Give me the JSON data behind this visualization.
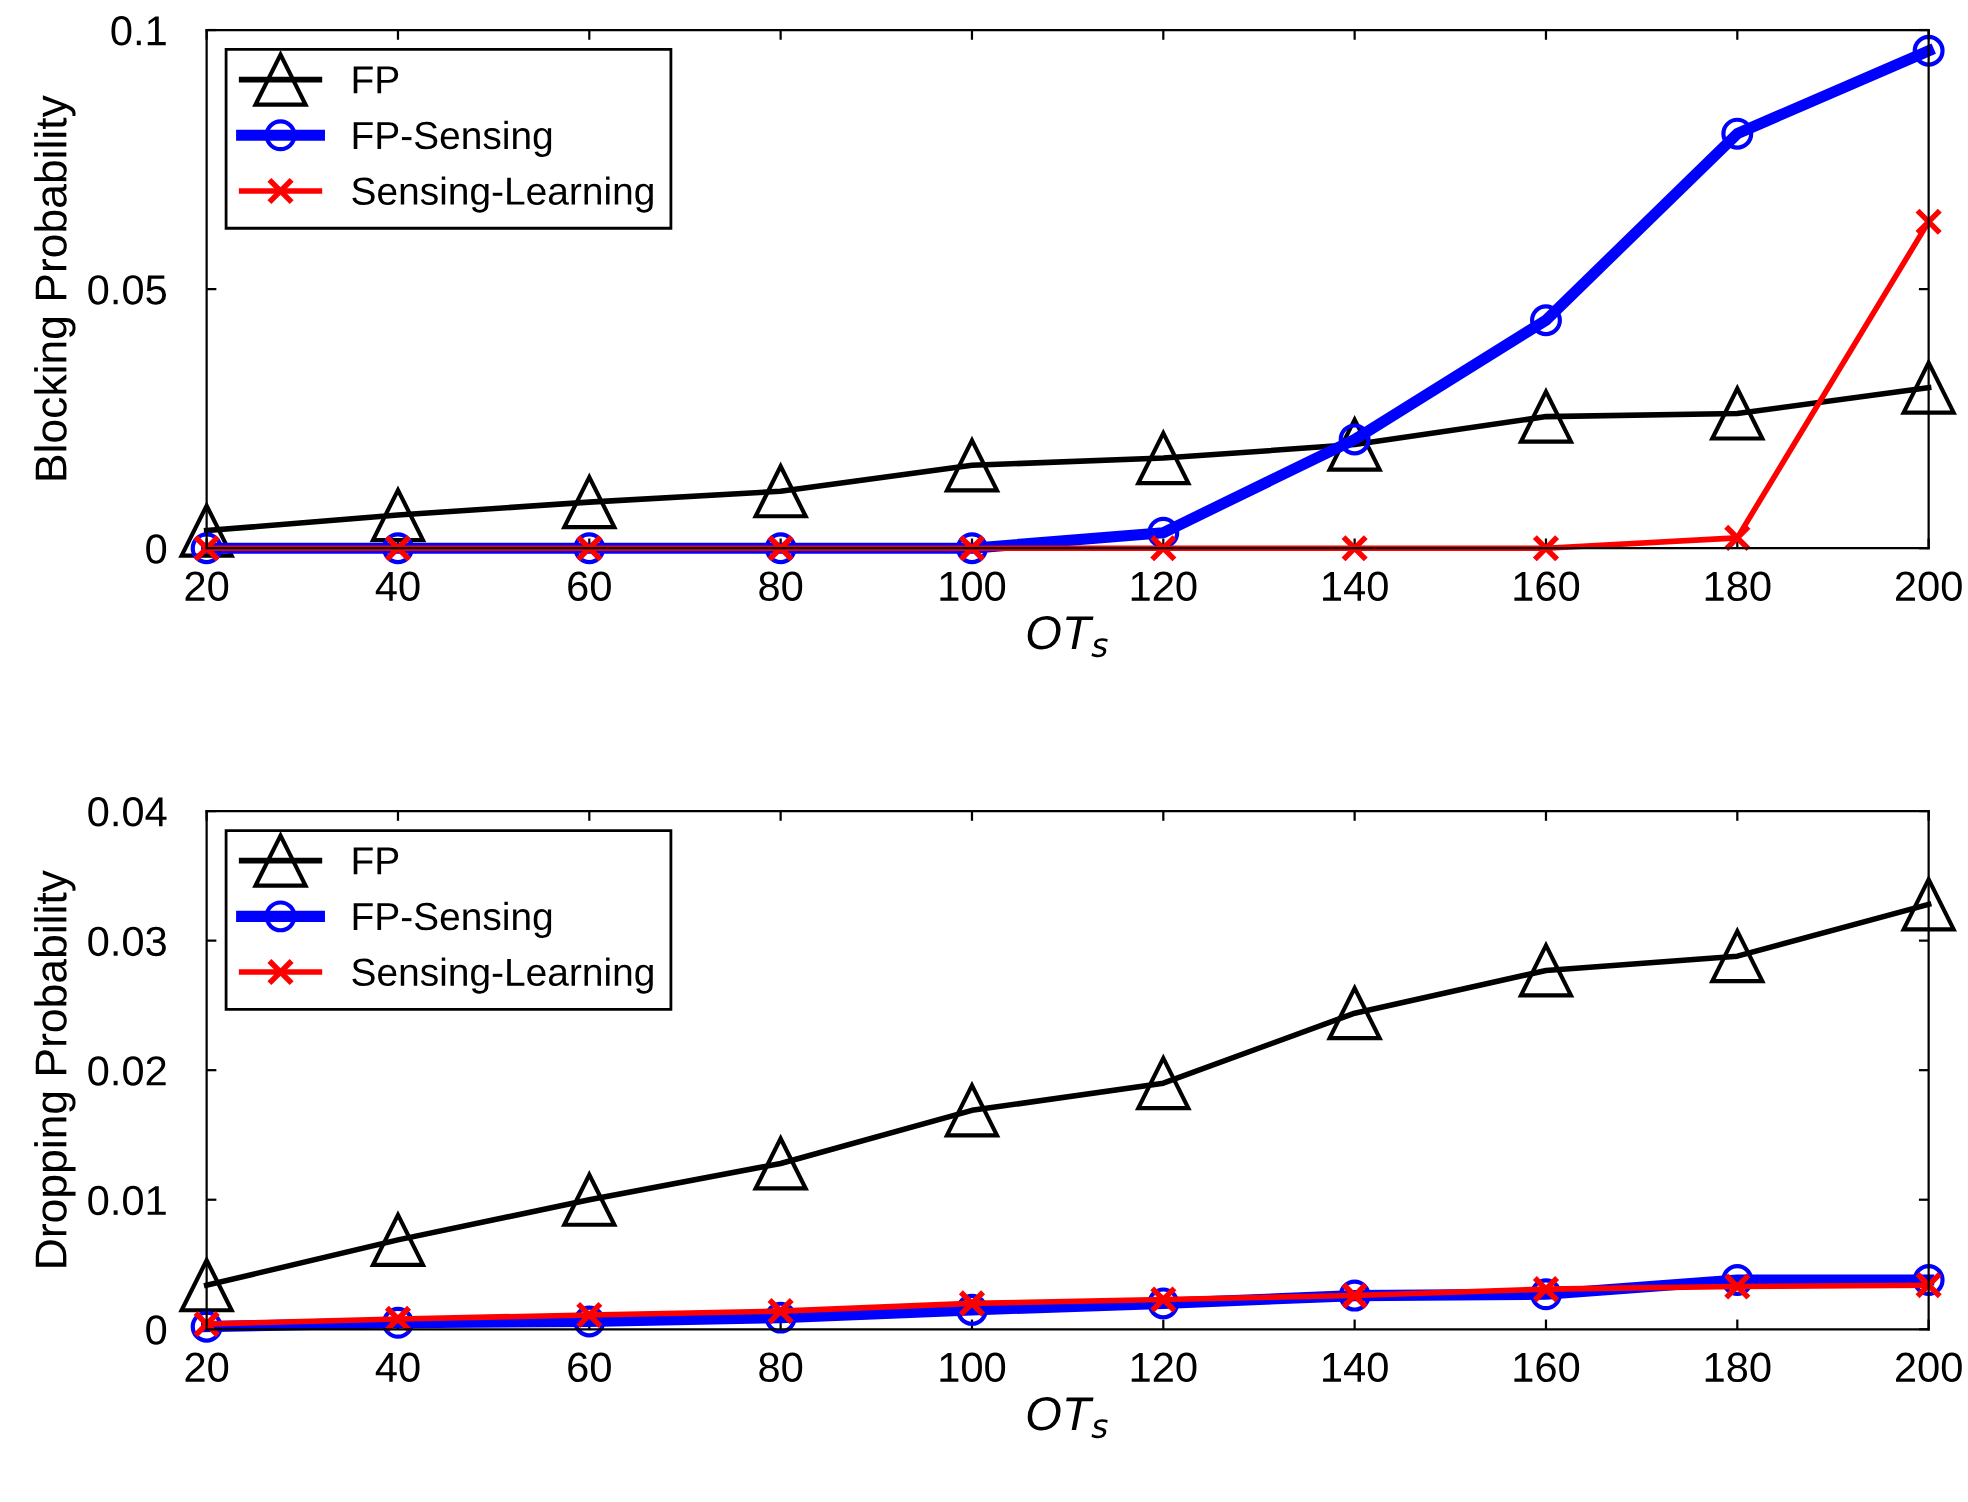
{
  "chart_data": [
    {
      "type": "line",
      "ylabel": "Blocking Probability",
      "xlabel": "OT$_{s}$",
      "x": [
        20,
        40,
        60,
        80,
        100,
        120,
        140,
        160,
        180,
        200
      ],
      "xlim": [
        20,
        200
      ],
      "xticks": [
        20,
        40,
        60,
        80,
        100,
        120,
        140,
        160,
        180,
        200
      ],
      "ylim": [
        0,
        0.1
      ],
      "yticks": [
        0,
        0.05,
        0.1
      ],
      "legend": "top left",
      "grid": false,
      "series": [
        {
          "name": "FP",
          "color": "#000000",
          "marker": "triangle",
          "values": [
            0.0034,
            0.0064,
            0.0089,
            0.011,
            0.016,
            0.0174,
            0.02,
            0.0254,
            0.026,
            0.031
          ]
        },
        {
          "name": "FP-Sensing",
          "color": "#0000ff",
          "marker": "circle",
          "values": [
            0,
            0,
            0,
            0,
            0,
            0.003,
            0.021,
            0.044,
            0.08,
            0.096
          ]
        },
        {
          "name": "Sensing-Learning",
          "color": "#ff0000",
          "marker": "cross",
          "values": [
            0,
            0,
            0,
            0,
            0,
            0,
            0,
            0,
            0.002,
            0.063
          ]
        }
      ]
    },
    {
      "type": "line",
      "ylabel": "Dropping Probability",
      "xlabel": "OT$_{s}$",
      "x": [
        20,
        40,
        60,
        80,
        100,
        120,
        140,
        160,
        180,
        200
      ],
      "xlim": [
        20,
        200
      ],
      "xticks": [
        20,
        40,
        60,
        80,
        100,
        120,
        140,
        160,
        180,
        200
      ],
      "ylim": [
        0,
        0.04
      ],
      "yticks": [
        0,
        0.01,
        0.02,
        0.03,
        0.04
      ],
      "legend": "top left",
      "grid": false,
      "series": [
        {
          "name": "FP",
          "color": "#000000",
          "marker": "triangle",
          "values": [
            0.0034,
            0.0069,
            0.01,
            0.0128,
            0.0169,
            0.019,
            0.0244,
            0.0277,
            0.0288,
            0.0328
          ]
        },
        {
          "name": "FP-Sensing",
          "color": "#0000ff",
          "marker": "circle",
          "values": [
            0.0002,
            0.0005,
            0.0006,
            0.0009,
            0.0015,
            0.002,
            0.0026,
            0.0027,
            0.0038,
            0.0038
          ]
        },
        {
          "name": "Sensing-Learning",
          "color": "#ff0000",
          "marker": "cross",
          "values": [
            0.0004,
            0.0008,
            0.0011,
            0.0014,
            0.002,
            0.0023,
            0.0026,
            0.0031,
            0.0033,
            0.0034
          ]
        }
      ]
    }
  ]
}
